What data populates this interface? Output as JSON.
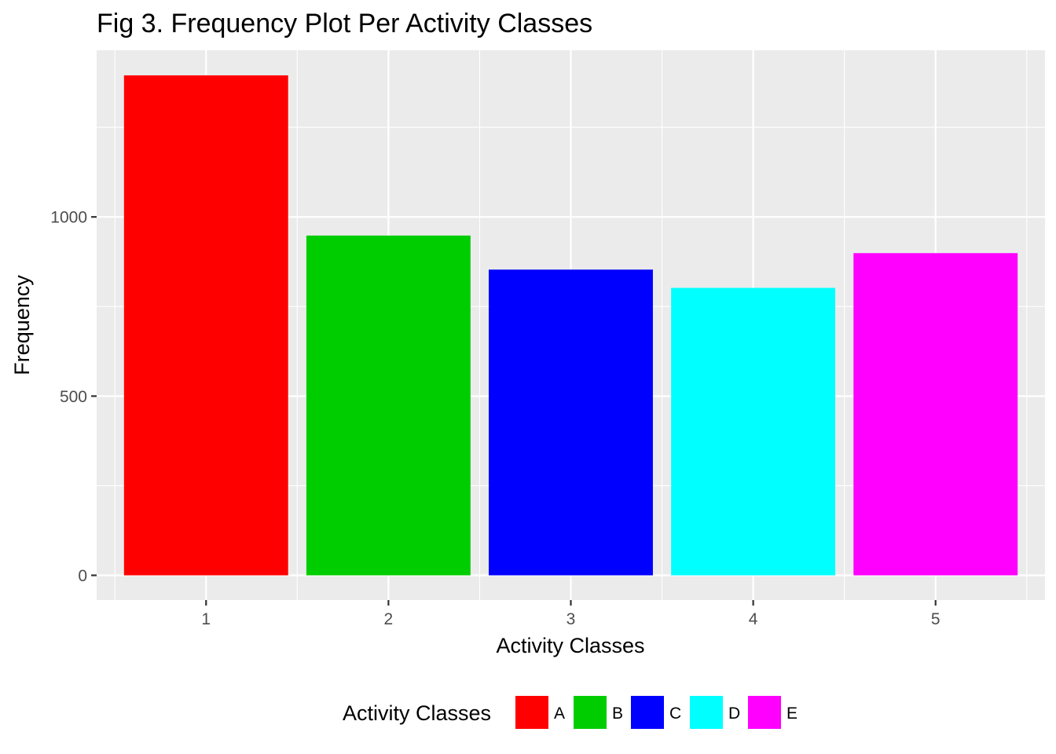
{
  "chart_data": {
    "type": "bar",
    "title": "Fig 3. Frequency Plot Per Activity Classes",
    "xlabel": "Activity Classes",
    "ylabel": "Frequency",
    "categories": [
      "1",
      "2",
      "3",
      "4",
      "5"
    ],
    "values": [
      1395,
      948,
      853,
      802,
      899
    ],
    "fill_classes": [
      "A",
      "B",
      "C",
      "D",
      "E"
    ],
    "colors": [
      "#FF0000",
      "#00CD00",
      "#0000FF",
      "#00FFFF",
      "#FF00FF"
    ],
    "yticks": [
      0,
      500,
      1000
    ],
    "ylim": [
      -69,
      1465
    ],
    "grid": true,
    "background": "#EBEBEB",
    "legend": {
      "title": "Activity Classes",
      "position": "bottom",
      "entries": [
        "A",
        "B",
        "C",
        "D",
        "E"
      ]
    }
  }
}
